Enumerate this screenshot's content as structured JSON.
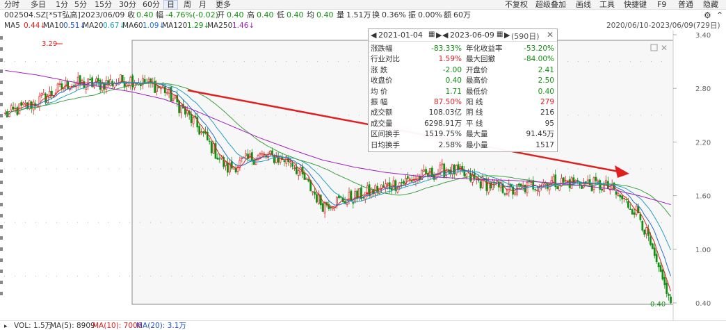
{
  "toolbar": {
    "tabs": [
      "分时",
      "多日",
      "1分",
      "5分",
      "15分",
      "30分",
      "60分",
      "日",
      "周",
      "月",
      "更多"
    ],
    "active_tab": "日",
    "right_items": [
      "不复权",
      "超级叠加",
      "画线",
      "工具",
      "快捷键",
      "F9",
      "普通",
      "隐藏"
    ]
  },
  "quote": {
    "code_name": "002504.SZ[*ST弘高]",
    "date": "2023/06/09",
    "close_label": "收",
    "close": "0.40",
    "change_label": "幅",
    "change": "-4.76%(-0.02)",
    "open_label": "开",
    "open": "0.40",
    "high_label": "高",
    "high": "0.40",
    "low_label": "低",
    "low": "0.40",
    "avg_label": "均",
    "avg": "0.40",
    "vol_label": "量",
    "vol": "1.51万",
    "turnover_label": "换",
    "turnover": "0.36%",
    "amp_label": "振",
    "amp": "0.00%",
    "amount_label": "额",
    "amount": "60万"
  },
  "ma": {
    "ma5": "MA5",
    "ma5_val": "0.44↓",
    "ma10": "MA10",
    "ma10_val": "0.51↓",
    "ma20": "MA20",
    "ma20_val": "0.67↓",
    "ma60": "MA60",
    "ma60_val": "1.09↓",
    "ma120": "MA120",
    "ma120_val": "1.29↓",
    "ma250": "MA250",
    "ma250_val": "1.46↓",
    "range": "2020/06/10-2023/06/09(729日)"
  },
  "colors": {
    "ma5": "#e02020",
    "ma10": "#2070d0",
    "ma20": "#20a0c0",
    "ma60": "#3aa040",
    "ma120": "#30a050",
    "ma250": "#a020c0",
    "up": "#e02020",
    "down": "#109010",
    "arrow": "#e02020"
  },
  "axis": {
    "y_ticks": [
      "3.40",
      "2.80",
      "2.20",
      "1.60",
      "1.00",
      "0.40"
    ],
    "max_label": "3.29",
    "min_label": "0.40"
  },
  "chart_data": {
    "type": "line",
    "title": "",
    "ylim": [
      0.4,
      3.4
    ],
    "series": [
      {
        "name": "MA250",
        "values": [
          3.0,
          2.95,
          2.88,
          2.82,
          2.76,
          2.68,
          2.55,
          2.4,
          2.25,
          2.12,
          2.0,
          1.92,
          1.86,
          1.82,
          1.8,
          1.78,
          1.77,
          1.75,
          1.72,
          1.68,
          1.6,
          1.5
        ]
      },
      {
        "name": "Close",
        "values": [
          2.5,
          2.65,
          2.85,
          2.85,
          2.9,
          2.8,
          2.4,
          1.9,
          2.05,
          2.0,
          1.5,
          1.58,
          1.7,
          1.8,
          1.9,
          1.75,
          1.65,
          1.75,
          1.75,
          1.7,
          1.4,
          0.4
        ]
      }
    ]
  },
  "tooltip": {
    "start_date": "2021-01-04",
    "end_date": "2023-06-09",
    "days": "(590日)",
    "rows": [
      {
        "l": "涨跌幅",
        "v": "-83.33%",
        "l2": "年化收益率",
        "v2": "-53.20%"
      },
      {
        "l": "行业对比",
        "v": "1.59%",
        "l2": "最大回撤",
        "v2": "-84.00%"
      },
      {
        "l": "涨  跌",
        "v": "-2.00",
        "l2": "开盘价",
        "v2": "2.41"
      },
      {
        "l": "收盘价",
        "v": "0.40",
        "l2": "最高价",
        "v2": "2.50"
      },
      {
        "l": "均  价",
        "v": "1.71",
        "l2": "最低价",
        "v2": "0.40"
      },
      {
        "l": "振  幅",
        "v": "87.50%",
        "l2": "阳  线",
        "v2": "279"
      },
      {
        "l": "成交额",
        "v": "108.03亿",
        "l2": "阴  线",
        "v2": "216"
      },
      {
        "l": "成交量",
        "v": "6298.91万",
        "l2": "平  线",
        "v2": "95"
      },
      {
        "l": "区间换手",
        "v": "1519.75%",
        "l2": "最大量",
        "v2": "91.45万"
      },
      {
        "l": "日均换手",
        "v": "2.58%",
        "l2": "最小量",
        "v2": "1517"
      }
    ]
  },
  "volume": {
    "vol": "VOL: 1.5万",
    "ma5": "MA(5): 8909",
    "ma10": "MA(10): 7006",
    "ma20": "MA(20): 3.1万"
  }
}
